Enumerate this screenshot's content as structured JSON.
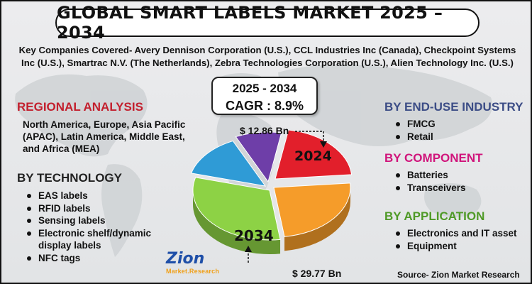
{
  "title": "GLOBAL SMART LABELS MARKET 2025 – 2034",
  "companies": {
    "line1": "Key Companies Covered- Avery Dennison Corporation (U.S.), CCL Industries Inc (Canada), Checkpoint Systems",
    "line2": "Inc (U.S.), Smartrac N.V. (The Netherlands), Zebra Technologies Corporation (U.S.), Alien Technology Inc. (U.S.)"
  },
  "cagr": {
    "period": "2025 - 2034",
    "value": "CAGR : 8.9%"
  },
  "regional": {
    "heading": "REGIONAL ANALYSIS",
    "text": "North America, Europe, Asia Pacific (APAC), Latin America, Middle East, and Africa (MEA)"
  },
  "technology": {
    "heading": "BY TECHNOLOGY",
    "items": [
      "EAS labels",
      "RFID labels",
      "Sensing labels",
      "Electronic shelf/dynamic display labels",
      "NFC tags"
    ]
  },
  "end_use": {
    "heading": "BY END-USE INDUSTRY",
    "items": [
      "FMCG",
      "Retail"
    ]
  },
  "component": {
    "heading": "BY COMPONENT",
    "items": [
      "Batteries",
      "Transceivers"
    ]
  },
  "application": {
    "heading": "BY APPLICATION",
    "items": [
      "Electronics and IT asset",
      "Equipment"
    ]
  },
  "market_values": {
    "value_2024": "$ 12.86 Bn",
    "value_2034": "$ 29.77 Bn",
    "year_2024": "2024",
    "year_2034": "2034"
  },
  "pie_colors": {
    "red": "#e21f2b",
    "orange": "#f59c2a",
    "green": "#8dd245",
    "blue": "#2f9bd6",
    "purple": "#6e3ea8"
  },
  "logo": {
    "main": "Zion",
    "sub": "Market.Research"
  },
  "source": "Source- Zion Market Research"
}
